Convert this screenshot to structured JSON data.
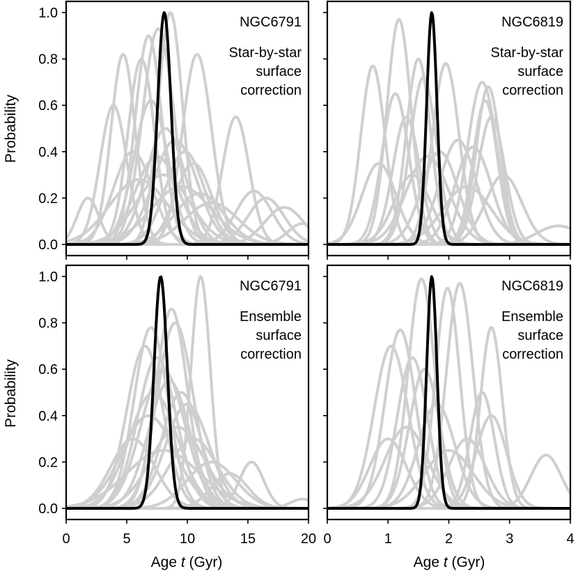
{
  "colors": {
    "individual": "#cfcfcf",
    "combined": "#000000",
    "frame": "#000000"
  },
  "ylabel": "Probability",
  "xlabel_prefix": "Age ",
  "xlabel_var": "t",
  "xlabel_suffix": " (Gyr)",
  "chart_data": [
    {
      "type": "line",
      "cluster": "NGC6791",
      "note_lines": [
        "Star-by-star",
        "surface",
        "correction"
      ],
      "xlim": [
        0,
        20
      ],
      "ylim": [
        0,
        1
      ],
      "xticks": [
        0,
        5,
        10,
        15,
        20
      ],
      "yticks": [
        0.0,
        0.2,
        0.4,
        0.6,
        0.8,
        1.0
      ],
      "combined": {
        "mu": 8.1,
        "sigma": 0.55
      },
      "individual": [
        {
          "mu": 4.7,
          "sigma": 1.0,
          "peak": 0.82
        },
        {
          "mu": 3.9,
          "sigma": 1.1,
          "peak": 0.6
        },
        {
          "mu": 1.8,
          "sigma": 0.9,
          "peak": 0.2
        },
        {
          "mu": 6.2,
          "sigma": 1.1,
          "peak": 0.8
        },
        {
          "mu": 6.8,
          "sigma": 1.1,
          "peak": 0.9
        },
        {
          "mu": 7.6,
          "sigma": 1.3,
          "peak": 0.93
        },
        {
          "mu": 8.6,
          "sigma": 1.0,
          "peak": 1.0
        },
        {
          "mu": 10.8,
          "sigma": 1.2,
          "peak": 0.82
        },
        {
          "mu": 7.0,
          "sigma": 1.4,
          "peak": 0.62
        },
        {
          "mu": 8.2,
          "sigma": 1.6,
          "peak": 0.5
        },
        {
          "mu": 9.0,
          "sigma": 1.8,
          "peak": 0.45
        },
        {
          "mu": 9.8,
          "sigma": 1.6,
          "peak": 0.4
        },
        {
          "mu": 10.5,
          "sigma": 1.5,
          "peak": 0.35
        },
        {
          "mu": 8.0,
          "sigma": 2.2,
          "peak": 0.3
        },
        {
          "mu": 9.5,
          "sigma": 2.5,
          "peak": 0.25
        },
        {
          "mu": 14.0,
          "sigma": 1.1,
          "peak": 0.55
        },
        {
          "mu": 15.5,
          "sigma": 1.5,
          "peak": 0.23
        },
        {
          "mu": 16.5,
          "sigma": 1.5,
          "peak": 0.2
        },
        {
          "mu": 18.0,
          "sigma": 1.6,
          "peak": 0.16
        },
        {
          "mu": 7.5,
          "sigma": 1.8,
          "peak": 0.38
        },
        {
          "mu": 11.0,
          "sigma": 2.0,
          "peak": 0.22
        },
        {
          "mu": 12.0,
          "sigma": 2.2,
          "peak": 0.18
        },
        {
          "mu": 6.0,
          "sigma": 2.4,
          "peak": 0.28
        },
        {
          "mu": 5.5,
          "sigma": 1.6,
          "peak": 0.4
        },
        {
          "mu": 19.5,
          "sigma": 1.2,
          "peak": 0.09
        }
      ]
    },
    {
      "type": "line",
      "cluster": "NGC6819",
      "note_lines": [
        "Star-by-star",
        "surface",
        "correction"
      ],
      "xlim": [
        0,
        4
      ],
      "ylim": [
        0,
        1
      ],
      "xticks": [
        0,
        1,
        2,
        3,
        4
      ],
      "yticks": [
        0.0,
        0.2,
        0.4,
        0.6,
        0.8,
        1.0
      ],
      "combined": {
        "mu": 1.72,
        "sigma": 0.085
      },
      "individual": [
        {
          "mu": 0.75,
          "sigma": 0.2,
          "peak": 0.77
        },
        {
          "mu": 0.85,
          "sigma": 0.28,
          "peak": 0.35
        },
        {
          "mu": 1.18,
          "sigma": 0.2,
          "peak": 0.97
        },
        {
          "mu": 1.12,
          "sigma": 0.22,
          "peak": 0.65
        },
        {
          "mu": 1.3,
          "sigma": 0.22,
          "peak": 0.55
        },
        {
          "mu": 1.5,
          "sigma": 0.2,
          "peak": 0.8
        },
        {
          "mu": 1.58,
          "sigma": 0.22,
          "peak": 0.72
        },
        {
          "mu": 1.95,
          "sigma": 0.22,
          "peak": 0.78
        },
        {
          "mu": 2.55,
          "sigma": 0.24,
          "peak": 0.7
        },
        {
          "mu": 2.65,
          "sigma": 0.2,
          "peak": 0.68
        },
        {
          "mu": 2.6,
          "sigma": 0.2,
          "peak": 0.62
        },
        {
          "mu": 2.7,
          "sigma": 0.22,
          "peak": 0.55
        },
        {
          "mu": 2.15,
          "sigma": 0.3,
          "peak": 0.45
        },
        {
          "mu": 2.4,
          "sigma": 0.3,
          "peak": 0.42
        },
        {
          "mu": 1.85,
          "sigma": 0.3,
          "peak": 0.4
        },
        {
          "mu": 2.9,
          "sigma": 0.3,
          "peak": 0.3
        },
        {
          "mu": 1.4,
          "sigma": 0.3,
          "peak": 0.3
        },
        {
          "mu": 3.8,
          "sigma": 0.35,
          "peak": 0.08
        },
        {
          "mu": 2.3,
          "sigma": 0.4,
          "peak": 0.25
        },
        {
          "mu": 1.65,
          "sigma": 0.35,
          "peak": 0.38
        }
      ]
    },
    {
      "type": "line",
      "cluster": "NGC6791",
      "note_lines": [
        "Ensemble",
        "surface",
        "correction"
      ],
      "xlim": [
        0,
        20
      ],
      "ylim": [
        0,
        1
      ],
      "xticks": [
        0,
        5,
        10,
        15,
        20
      ],
      "yticks": [
        0.0,
        0.2,
        0.4,
        0.6,
        0.8,
        1.0
      ],
      "combined": {
        "mu": 7.8,
        "sigma": 0.55
      },
      "individual": [
        {
          "mu": 7.0,
          "sigma": 1.4,
          "peak": 0.78
        },
        {
          "mu": 8.7,
          "sigma": 1.3,
          "peak": 0.86
        },
        {
          "mu": 9.0,
          "sigma": 1.5,
          "peak": 0.8
        },
        {
          "mu": 11.1,
          "sigma": 0.8,
          "peak": 1.0
        },
        {
          "mu": 6.5,
          "sigma": 1.5,
          "peak": 0.7
        },
        {
          "mu": 7.5,
          "sigma": 1.6,
          "peak": 0.65
        },
        {
          "mu": 8.0,
          "sigma": 1.8,
          "peak": 0.6
        },
        {
          "mu": 8.5,
          "sigma": 1.7,
          "peak": 0.55
        },
        {
          "mu": 9.5,
          "sigma": 1.6,
          "peak": 0.5
        },
        {
          "mu": 10.0,
          "sigma": 1.8,
          "peak": 0.45
        },
        {
          "mu": 7.2,
          "sigma": 2.0,
          "peak": 0.5
        },
        {
          "mu": 6.8,
          "sigma": 2.2,
          "peak": 0.4
        },
        {
          "mu": 9.2,
          "sigma": 2.2,
          "peak": 0.35
        },
        {
          "mu": 10.5,
          "sigma": 2.0,
          "peak": 0.3
        },
        {
          "mu": 5.5,
          "sigma": 1.8,
          "peak": 0.3
        },
        {
          "mu": 15.3,
          "sigma": 1.0,
          "peak": 0.2
        },
        {
          "mu": 13.5,
          "sigma": 1.5,
          "peak": 0.15
        },
        {
          "mu": 12.0,
          "sigma": 2.0,
          "peak": 0.2
        },
        {
          "mu": 8.0,
          "sigma": 3.0,
          "peak": 0.25
        },
        {
          "mu": 19.5,
          "sigma": 1.0,
          "peak": 0.04
        }
      ]
    },
    {
      "type": "line",
      "cluster": "NGC6819",
      "note_lines": [
        "Ensemble",
        "surface",
        "correction"
      ],
      "xlim": [
        0,
        4
      ],
      "ylim": [
        0,
        1
      ],
      "xticks": [
        0,
        1,
        2,
        3,
        4
      ],
      "yticks": [
        0.0,
        0.2,
        0.4,
        0.6,
        0.8,
        1.0
      ],
      "combined": {
        "mu": 1.72,
        "sigma": 0.085
      },
      "individual": [
        {
          "mu": 1.55,
          "sigma": 0.22,
          "peak": 0.99
        },
        {
          "mu": 1.98,
          "sigma": 0.2,
          "peak": 0.95
        },
        {
          "mu": 2.18,
          "sigma": 0.22,
          "peak": 0.97
        },
        {
          "mu": 1.2,
          "sigma": 0.25,
          "peak": 0.77
        },
        {
          "mu": 1.05,
          "sigma": 0.28,
          "peak": 0.7
        },
        {
          "mu": 1.4,
          "sigma": 0.25,
          "peak": 0.65
        },
        {
          "mu": 1.6,
          "sigma": 0.25,
          "peak": 0.6
        },
        {
          "mu": 2.7,
          "sigma": 0.18,
          "peak": 0.78
        },
        {
          "mu": 2.55,
          "sigma": 0.2,
          "peak": 0.5
        },
        {
          "mu": 2.7,
          "sigma": 0.25,
          "peak": 0.4
        },
        {
          "mu": 1.8,
          "sigma": 0.3,
          "peak": 0.45
        },
        {
          "mu": 1.3,
          "sigma": 0.35,
          "peak": 0.35
        },
        {
          "mu": 2.3,
          "sigma": 0.3,
          "peak": 0.3
        },
        {
          "mu": 3.6,
          "sigma": 0.25,
          "peak": 0.23
        },
        {
          "mu": 1.0,
          "sigma": 0.3,
          "peak": 0.3
        },
        {
          "mu": 2.0,
          "sigma": 0.4,
          "peak": 0.25
        }
      ]
    }
  ]
}
